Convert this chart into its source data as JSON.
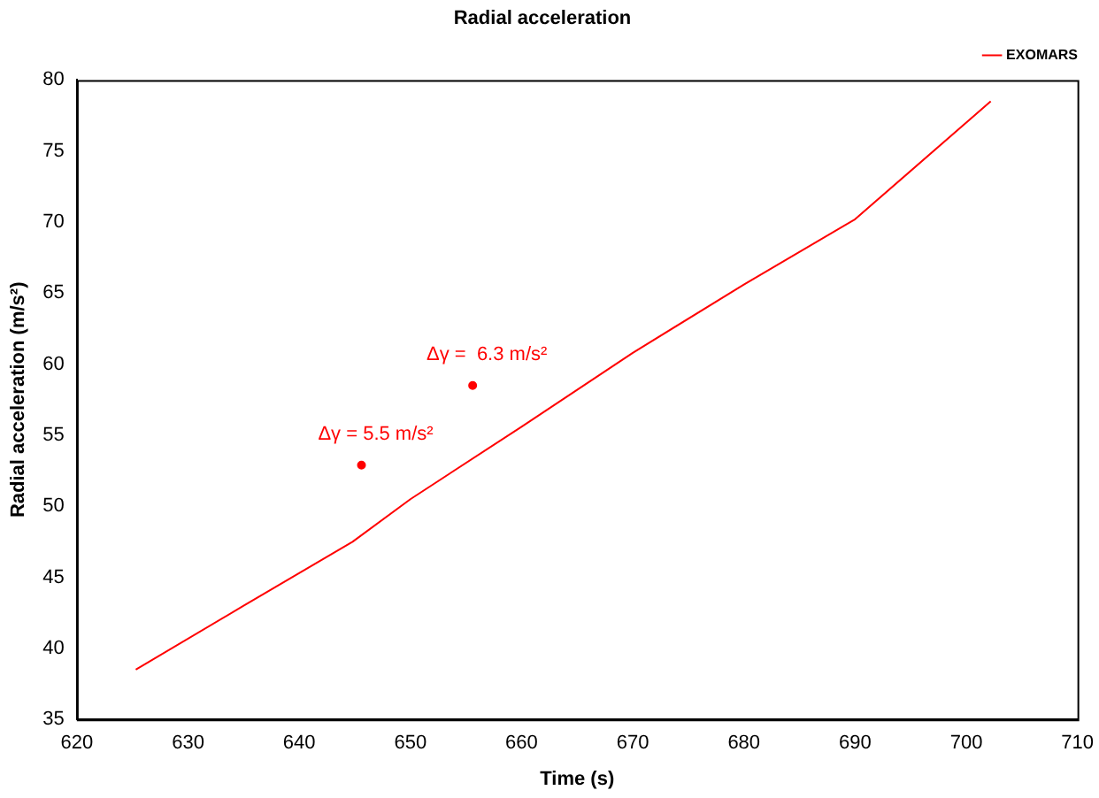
{
  "chart_data": {
    "type": "line",
    "title": "Radial acceleration",
    "xlabel": "Time (s)",
    "ylabel": "Radial acceleration (m/s²)",
    "xlim": [
      620,
      710
    ],
    "xticks": [
      620,
      630,
      640,
      650,
      660,
      670,
      680,
      690,
      700,
      710
    ],
    "ylim": [
      35,
      80
    ],
    "yticks": [
      35,
      40,
      45,
      50,
      55,
      60,
      65,
      70,
      75,
      80
    ],
    "grid": false,
    "legend": "top right",
    "series": [
      {
        "name": "EXOMARS",
        "color": "#ff0000",
        "marker": "none",
        "x": [
          625.3,
          635,
          644.8,
          650,
          660,
          670,
          680,
          690,
          702.2
        ],
        "values": [
          38.5,
          43,
          47.5,
          50.5,
          55.6,
          60.8,
          65.6,
          70.2,
          78.5
        ]
      },
      {
        "color": "#ff0000",
        "type": "scatter",
        "marker": "circle",
        "x": [
          645.6,
          655.6
        ],
        "values": [
          52.9,
          58.5
        ]
      }
    ],
    "annotations": [
      {
        "text": "Δγ = 5.5 m/s²",
        "x": 645.6,
        "y": 52.9
      },
      {
        "text": "Δγ =  6.3 m/s²",
        "x": 655.6,
        "y": 58.5
      }
    ]
  }
}
